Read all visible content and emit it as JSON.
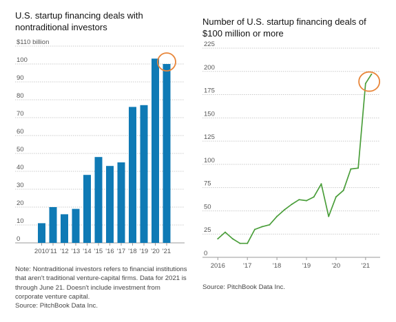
{
  "chart_data": [
    {
      "type": "bar",
      "title": "U.S. startup financing deals with nontraditional investors",
      "ylabel": "$110 billion",
      "categories": [
        "2010",
        "'11",
        "'12",
        "'13",
        "'14",
        "'15",
        "'16",
        "'17",
        "'18",
        "'19",
        "'20",
        "'21"
      ],
      "values": [
        11,
        20,
        16,
        19,
        38,
        48,
        43,
        45,
        76,
        77,
        103,
        100
      ],
      "ylim": [
        0,
        110
      ],
      "yticks": [
        "0",
        "10",
        "20",
        "30",
        "40",
        "50",
        "60",
        "70",
        "80",
        "90",
        "100",
        "$110 billion"
      ],
      "grid": true,
      "bar_color": "#0f7ab5",
      "highlight_color": "#e8863a",
      "note": "Note: Nontraditional investors refers to financial institutions that aren't traditional venture-capital firms. Data for 2021 is through June 21. Doesn't include investment from corporate venture capital.",
      "source": "Source: PitchBook Data Inc."
    },
    {
      "type": "line",
      "title": "Number of U.S. startup financing deals of $100 million or more",
      "x": [
        2016.0,
        2016.25,
        2016.5,
        2016.75,
        2017.0,
        2017.25,
        2017.5,
        2017.75,
        2018.0,
        2018.25,
        2018.5,
        2018.75,
        2019.0,
        2019.25,
        2019.5,
        2019.75,
        2020.0,
        2020.25,
        2020.5,
        2020.75,
        2021.0,
        2021.2
      ],
      "y": [
        20,
        27,
        20,
        15,
        15,
        30,
        33,
        35,
        44,
        51,
        57,
        62,
        61,
        65,
        79,
        44,
        65,
        72,
        95,
        96,
        187,
        197
      ],
      "xticks": [
        "2016",
        "'17",
        "'18",
        "'19",
        "'20",
        "'21"
      ],
      "xlim": [
        2015.9,
        2021.4
      ],
      "ylim": [
        0,
        225
      ],
      "yticks": [
        "0",
        "25",
        "50",
        "75",
        "100",
        "125",
        "150",
        "175",
        "200",
        "225"
      ],
      "grid": true,
      "line_color": "#4a9e3a",
      "highlight_color": "#e8863a",
      "source": "Source: PitchBook Data Inc."
    }
  ]
}
